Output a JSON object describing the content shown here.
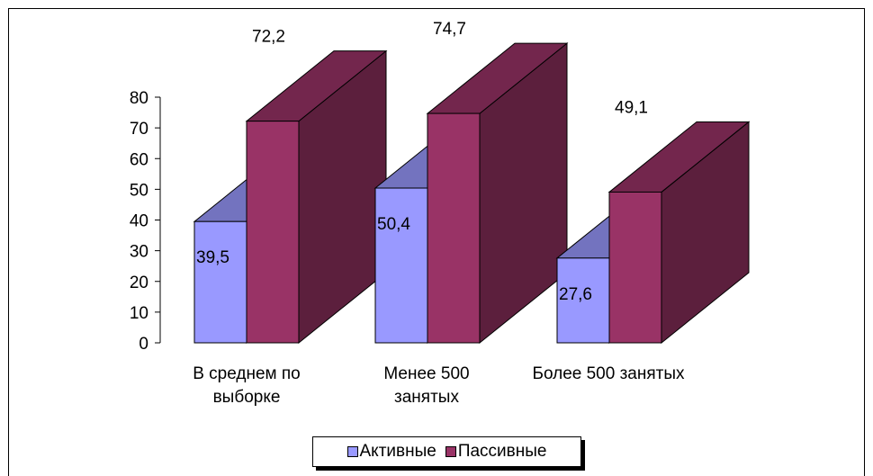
{
  "chart_data": {
    "type": "bar",
    "categories": [
      [
        "В среднем по",
        "выборке"
      ],
      [
        "Менее 500",
        "занятых"
      ],
      [
        "Более 500 занятых"
      ]
    ],
    "series": [
      {
        "name": "Активные",
        "values": [
          39.5,
          50.4,
          27.6
        ],
        "labels": [
          "39,5",
          "50,4",
          "27,6"
        ],
        "color": "#9999ff"
      },
      {
        "name": "Пассивные",
        "values": [
          72.2,
          74.7,
          49.1
        ],
        "labels": [
          "72,2",
          "74,7",
          "49,1"
        ],
        "color": "#993366"
      }
    ],
    "yticks": [
      "0",
      "10",
      "20",
      "30",
      "40",
      "50",
      "60",
      "70",
      "80"
    ],
    "ylim": [
      0,
      80
    ],
    "bar_style": "3d",
    "legend_position": "bottom",
    "grid": false
  }
}
